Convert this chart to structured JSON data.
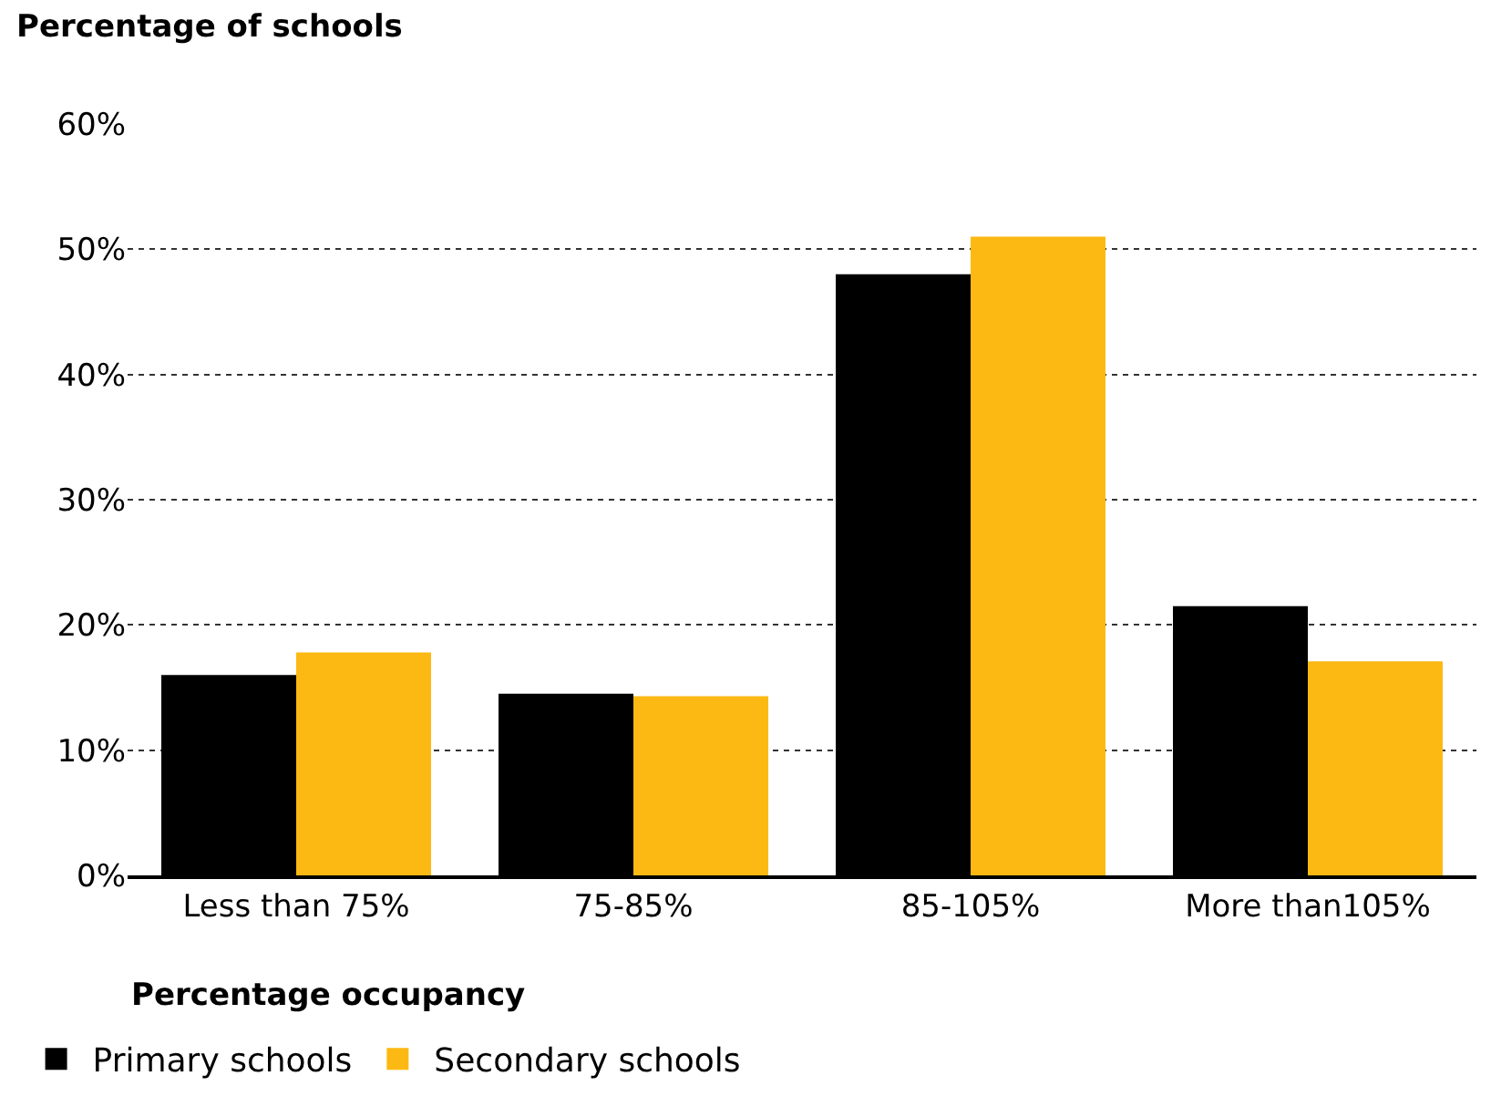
{
  "chart_data": {
    "type": "bar",
    "ylabel": "Percentage of schools",
    "xlabel": "Percentage occupancy",
    "categories": [
      "Less than 75%",
      "75-85%",
      "85-105%",
      "More than105%"
    ],
    "series": [
      {
        "name": "Primary schools",
        "color": "#000000",
        "values": [
          16.0,
          14.5,
          48.0,
          21.5
        ]
      },
      {
        "name": "Secondary schools",
        "color": "#fdb913",
        "values": [
          17.8,
          14.3,
          51.0,
          17.1
        ]
      }
    ],
    "ylim": [
      0,
      60
    ],
    "yticks": [
      {
        "value": 0,
        "label": "0%"
      },
      {
        "value": 10,
        "label": "10%"
      },
      {
        "value": 20,
        "label": "20%"
      },
      {
        "value": 30,
        "label": "30%"
      },
      {
        "value": 40,
        "label": "40%"
      },
      {
        "value": 50,
        "label": "50%"
      },
      {
        "value": 60,
        "label": "60%"
      }
    ],
    "grid": "y",
    "legend": "bottom"
  }
}
